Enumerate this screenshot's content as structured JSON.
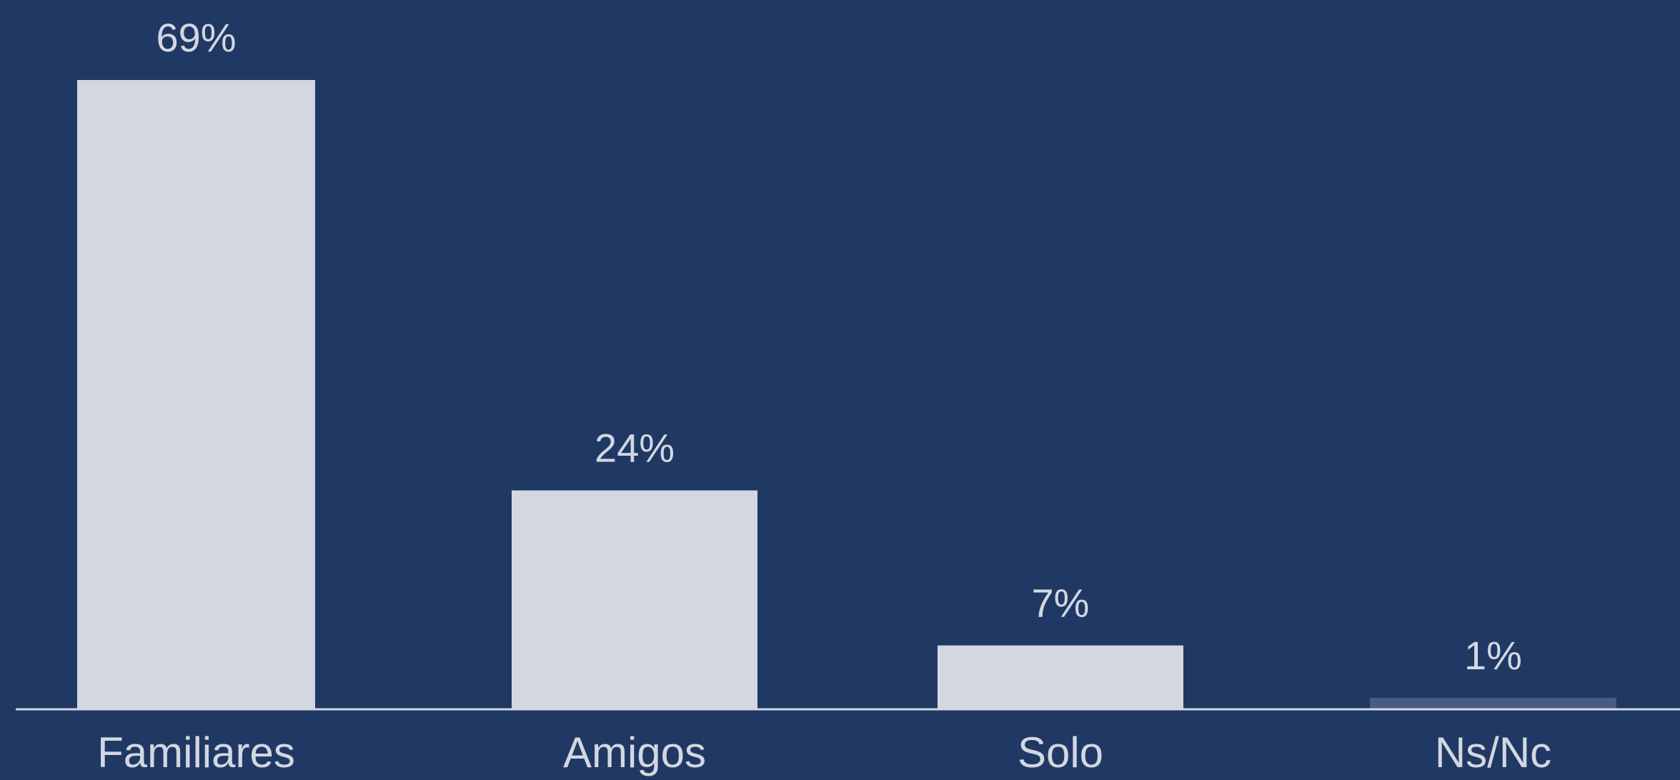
{
  "chart_data": {
    "type": "bar",
    "categories": [
      "Familiares",
      "Amigos",
      "Solo",
      "Ns/Nc"
    ],
    "values": [
      69,
      24,
      7,
      1
    ],
    "value_labels": [
      "69%",
      "24%",
      "7%",
      "1%"
    ],
    "unit": "%",
    "ylim": [
      0,
      69
    ],
    "grid": false,
    "legend": "none"
  },
  "colors": {
    "background": "#203864",
    "bar": "#d3d7e0",
    "bar_muted": "#475b85",
    "text": "#d3d7e0",
    "axis": "#d3d7e0"
  }
}
